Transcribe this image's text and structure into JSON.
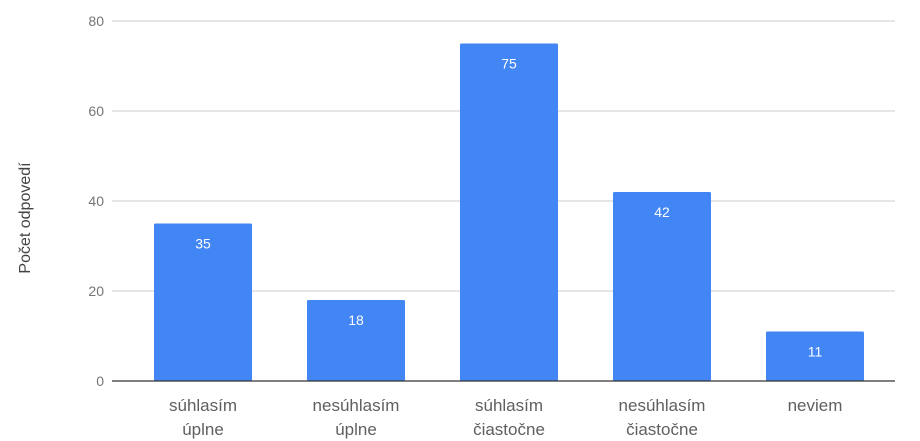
{
  "chart_data": {
    "type": "bar",
    "title": "",
    "xlabel": "",
    "ylabel": "Počet odpovedí",
    "categories": [
      [
        "súhlasím",
        "úplne"
      ],
      [
        "nesúhlasím",
        "úplne"
      ],
      [
        "súhlasím",
        "čiastočne"
      ],
      [
        "nesúhlasím",
        "čiastočne"
      ],
      [
        "neviem"
      ]
    ],
    "values": [
      35,
      18,
      75,
      42,
      11
    ],
    "ylim": [
      0,
      80
    ],
    "yticks": [
      0,
      20,
      40,
      60,
      80
    ],
    "grid": true,
    "legend": "none",
    "colors": {
      "bar": "#4285f4",
      "grid": "#cccccc",
      "baseline": "#333333"
    }
  }
}
